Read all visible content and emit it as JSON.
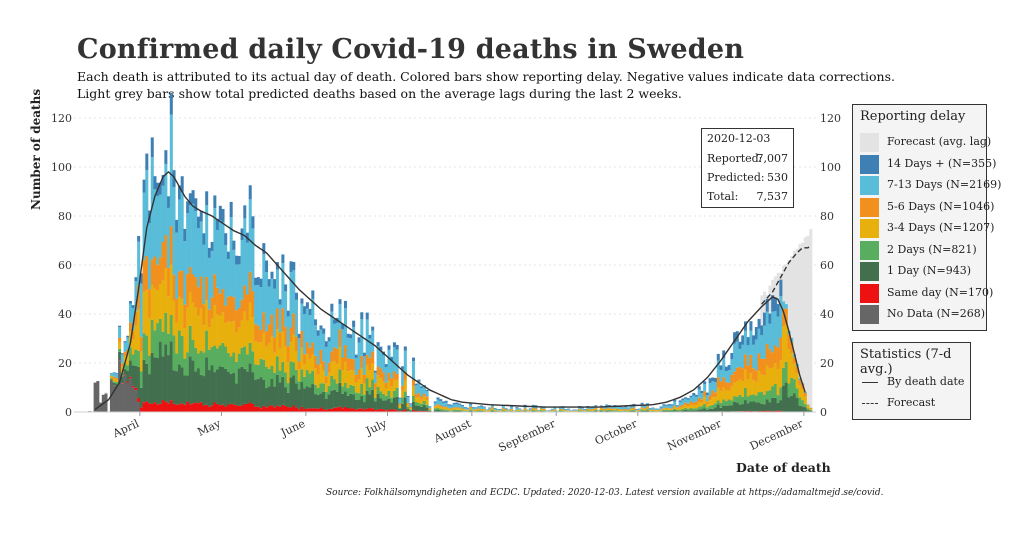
{
  "title": "Confirmed daily Covid-19 deaths in Sweden",
  "subtitle_lines": [
    "Each death is attributed to its actual day of death. Colored bars show reporting delay. Negative values indicate data corrections.",
    "Light grey bars show total predicted deaths based on the average lags during the last 2 weeks."
  ],
  "source": "Source: Folkhälsomyndigheten and ECDC. Updated: 2020-12-03. Latest version available at https://adamaltmejd.se/covid.",
  "stats_box": {
    "date": "2020-12-03",
    "reported_label": "Reported:",
    "reported_value": "7,007",
    "predicted_label": "Predicted:",
    "predicted_value": "530",
    "total_label": "Total:",
    "total_value": "7,537"
  },
  "legend_reporting": {
    "title": "Reporting delay",
    "items": [
      {
        "label": "Forecast (avg. lag)",
        "color": "#e3e3e3"
      },
      {
        "label": "14 Days + (N=355)",
        "color": "#3f80b4"
      },
      {
        "label": "7-13 Days (N=2169)",
        "color": "#59bcd8"
      },
      {
        "label": "5-6 Days (N=1046)",
        "color": "#f2901e"
      },
      {
        "label": "3-4 Days (N=1207)",
        "color": "#e8b00d"
      },
      {
        "label": "2 Days (N=821)",
        "color": "#58ad5e"
      },
      {
        "label": "1 Day (N=943)",
        "color": "#42704f"
      },
      {
        "label": "Same day (N=170)",
        "color": "#ee1111"
      },
      {
        "label": "No Data (N=268)",
        "color": "#666666"
      }
    ]
  },
  "legend_stats": {
    "title": "Statistics (7-d avg.)",
    "items": [
      {
        "label": "By death date",
        "style": "solid"
      },
      {
        "label": "Forecast",
        "style": "dashed"
      }
    ]
  },
  "chart_data": {
    "type": "bar",
    "stacked": true,
    "title": "Confirmed daily Covid-19 deaths in Sweden",
    "xlabel": "Date of death",
    "ylabel": "Number of deaths",
    "ylim": [
      0,
      120
    ],
    "yticks": [
      0,
      20,
      40,
      60,
      80,
      100,
      120
    ],
    "x_start": "2020-03-10",
    "x_end": "2020-12-03",
    "month_ticks": [
      {
        "label": "April",
        "day": 22
      },
      {
        "label": "May",
        "day": 52
      },
      {
        "label": "June",
        "day": 83
      },
      {
        "label": "July",
        "day": 113
      },
      {
        "label": "August",
        "day": 144
      },
      {
        "label": "September",
        "day": 175
      },
      {
        "label": "October",
        "day": 205
      },
      {
        "label": "November",
        "day": 236
      },
      {
        "label": "December",
        "day": 266
      }
    ],
    "series_order": [
      "No Data",
      "Same day",
      "1 Day",
      "2 Days",
      "3-4 Days",
      "5-6 Days",
      "7-13 Days",
      "14 Days +"
    ],
    "daily_total_keypoints": [
      [
        0,
        0
      ],
      [
        5,
        2
      ],
      [
        8,
        5
      ],
      [
        10,
        9
      ],
      [
        12,
        15
      ],
      [
        14,
        22
      ],
      [
        16,
        30
      ],
      [
        18,
        40
      ],
      [
        20,
        55
      ],
      [
        22,
        70
      ],
      [
        24,
        80
      ],
      [
        26,
        90
      ],
      [
        28,
        95
      ],
      [
        30,
        100
      ],
      [
        32,
        98
      ],
      [
        34,
        100
      ],
      [
        36,
        95
      ],
      [
        38,
        90
      ],
      [
        40,
        85
      ],
      [
        42,
        82
      ],
      [
        44,
        80
      ],
      [
        46,
        80
      ],
      [
        48,
        78
      ],
      [
        50,
        76
      ],
      [
        52,
        75
      ],
      [
        55,
        72
      ],
      [
        58,
        70
      ],
      [
        61,
        68
      ],
      [
        64,
        66
      ],
      [
        67,
        62
      ],
      [
        70,
        60
      ],
      [
        73,
        56
      ],
      [
        76,
        52
      ],
      [
        79,
        48
      ],
      [
        82,
        45
      ],
      [
        85,
        42
      ],
      [
        88,
        38
      ],
      [
        91,
        37
      ],
      [
        94,
        36
      ],
      [
        97,
        34
      ],
      [
        100,
        32
      ],
      [
        103,
        30
      ],
      [
        106,
        28
      ],
      [
        109,
        26
      ],
      [
        112,
        22
      ],
      [
        115,
        18
      ],
      [
        118,
        14
      ],
      [
        121,
        11
      ],
      [
        124,
        9
      ],
      [
        127,
        7
      ],
      [
        130,
        6
      ],
      [
        133,
        5
      ],
      [
        136,
        4
      ],
      [
        140,
        3
      ],
      [
        145,
        3
      ],
      [
        150,
        2
      ],
      [
        160,
        2
      ],
      [
        170,
        1.5
      ],
      [
        180,
        1.5
      ],
      [
        190,
        2
      ],
      [
        200,
        2
      ],
      [
        210,
        2.5
      ],
      [
        215,
        3
      ],
      [
        220,
        4
      ],
      [
        225,
        7
      ],
      [
        230,
        12
      ],
      [
        235,
        20
      ],
      [
        240,
        28
      ],
      [
        245,
        36
      ],
      [
        250,
        42
      ],
      [
        253,
        45
      ],
      [
        255,
        47
      ],
      [
        257,
        45
      ],
      [
        259,
        38
      ],
      [
        261,
        30
      ],
      [
        263,
        18
      ],
      [
        265,
        10
      ],
      [
        267,
        4
      ],
      [
        268,
        2
      ]
    ],
    "avg_line_keypoints": [
      [
        5,
        1
      ],
      [
        10,
        5
      ],
      [
        14,
        12
      ],
      [
        18,
        28
      ],
      [
        21,
        50
      ],
      [
        24,
        75
      ],
      [
        27,
        88
      ],
      [
        30,
        96
      ],
      [
        32,
        98
      ],
      [
        34,
        96
      ],
      [
        36,
        92
      ],
      [
        38,
        88
      ],
      [
        41,
        84
      ],
      [
        44,
        82
      ],
      [
        48,
        80
      ],
      [
        52,
        77
      ],
      [
        56,
        74
      ],
      [
        60,
        72
      ],
      [
        64,
        68
      ],
      [
        68,
        65
      ],
      [
        72,
        60
      ],
      [
        76,
        55
      ],
      [
        80,
        50
      ],
      [
        84,
        46
      ],
      [
        88,
        42
      ],
      [
        92,
        39
      ],
      [
        96,
        36
      ],
      [
        100,
        33
      ],
      [
        104,
        30
      ],
      [
        108,
        27
      ],
      [
        112,
        23
      ],
      [
        116,
        19
      ],
      [
        120,
        15
      ],
      [
        124,
        12
      ],
      [
        128,
        9
      ],
      [
        132,
        7
      ],
      [
        136,
        5
      ],
      [
        140,
        4
      ],
      [
        150,
        3
      ],
      [
        160,
        2.5
      ],
      [
        170,
        2
      ],
      [
        180,
        2
      ],
      [
        190,
        2
      ],
      [
        200,
        2.5
      ],
      [
        210,
        3
      ],
      [
        215,
        4
      ],
      [
        220,
        6
      ],
      [
        225,
        9
      ],
      [
        230,
        14
      ],
      [
        235,
        21
      ],
      [
        240,
        29
      ],
      [
        245,
        37
      ],
      [
        250,
        43
      ],
      [
        254,
        47
      ],
      [
        256,
        46
      ],
      [
        258,
        41
      ],
      [
        260,
        33
      ],
      [
        262,
        24
      ],
      [
        264,
        15
      ],
      [
        266,
        8
      ]
    ],
    "forecast_line_keypoints": [
      [
        250,
        44
      ],
      [
        254,
        49
      ],
      [
        257,
        55
      ],
      [
        260,
        61
      ],
      [
        263,
        65
      ],
      [
        265,
        67
      ],
      [
        267,
        67
      ],
      [
        268,
        68
      ]
    ],
    "forecast_bar_keypoints": [
      [
        250,
        46
      ],
      [
        254,
        52
      ],
      [
        257,
        58
      ],
      [
        260,
        64
      ],
      [
        263,
        68
      ],
      [
        266,
        71
      ],
      [
        268,
        73
      ]
    ]
  }
}
